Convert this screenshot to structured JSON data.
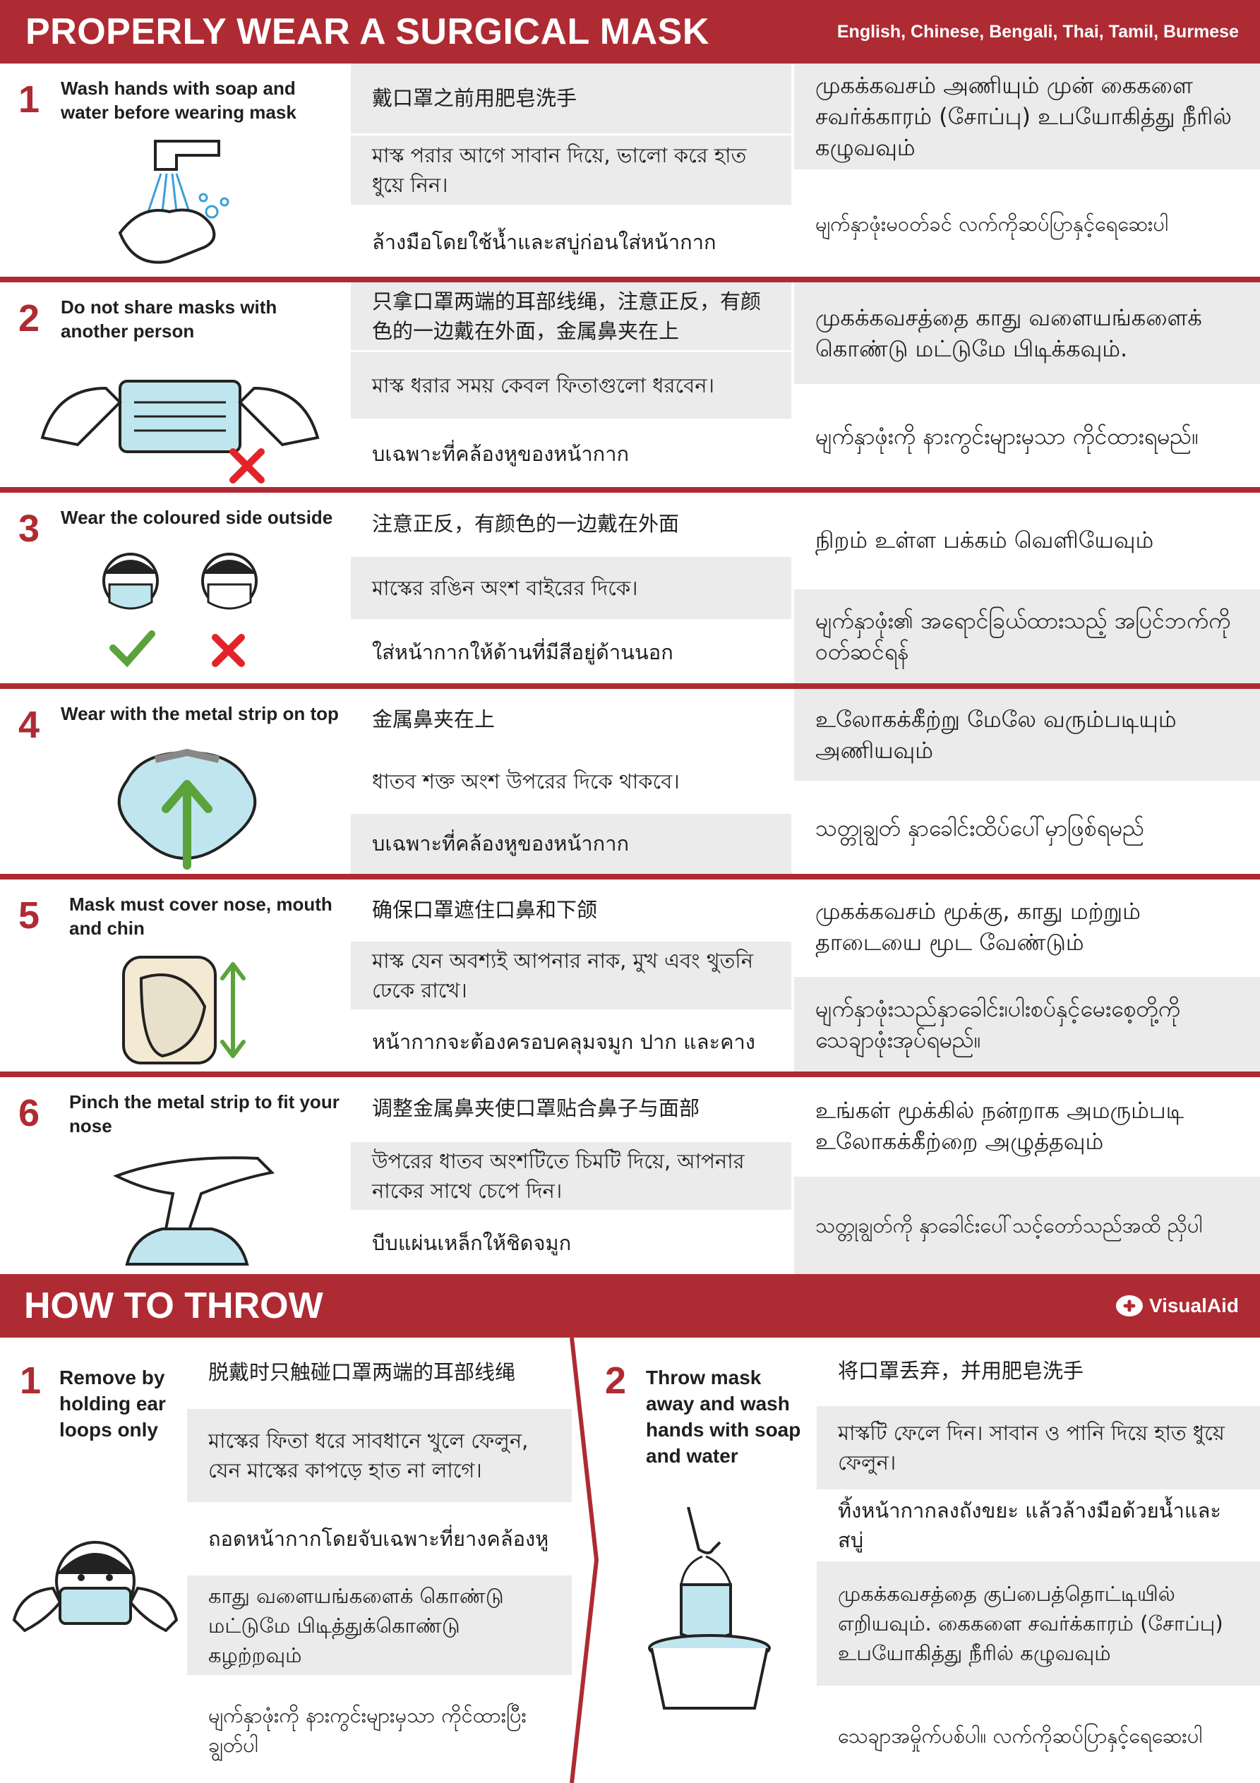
{
  "header": {
    "title": "PROPERLY WEAR A SURGICAL MASK",
    "languages": "English, Chinese, Bengali, Thai, Tamil, Burmese"
  },
  "steps": [
    {
      "num": "1",
      "title": "Wash hands with soap and water before wearing mask",
      "zh": "戴口罩之前用肥皂洗手",
      "bn": "মাস্ক পরার আগে সাবান দিয়ে, ভালো করে হাত ধুয়ে নিন।",
      "th": "ล้างมือโดยใช้น้ำและสบู่ก่อนใส่หน้ากาก",
      "ta": "முகக்கவசம் அணியும் முன் கைகளை சவர்க்காரம் (சோப்பு) உபயோகித்து நீரில் கழுவவும்",
      "my": "မျက်နှာဖုံးမဝတ်ခင် လက်ကိုဆပ်ပြာနှင့်ရေဆေးပါ"
    },
    {
      "num": "2",
      "title": "Do not share masks with another person",
      "zh": "只拿口罩两端的耳部线绳，注意正反，有颜色的一边戴在外面，金属鼻夹在上",
      "bn": "মাস্ক ধরার সময় কেবল ফিতাগুলো ধরবেন।",
      "th": "บเฉพาะที่คล้องหูของหน้ากาก",
      "ta": "முகக்கவசத்தை காது வளையங்களைக் கொண்டு மட்டுமே பிடிக்கவும்.",
      "my": "မျက်နှာဖုံးကို နားကွင်းများမှသာ ကိုင်ထားရမည်။"
    },
    {
      "num": "3",
      "title": "Wear the coloured side outside",
      "zh": "注意正反，有颜色的一边戴在外面",
      "bn": "মাস্কের রঙিন অংশ বাইরের দিকে।",
      "th": "ใส่หน้ากากให้ด้านที่มีสีอยู่ด้านนอก",
      "ta": "நிறம் உள்ள பக்கம் வெளியேவும்",
      "my": "မျက်နှာဖုံး၏ အရောင်ခြယ်ထားသည့် အပြင်ဘက်ကိုဝတ်ဆင်ရန်"
    },
    {
      "num": "4",
      "title": "Wear with the metal strip on top",
      "zh": "金属鼻夹在上",
      "bn": "ধাতব শক্ত অংশ উপরের দিকে থাকবে।",
      "th": "บเฉพาะที่คล้องหูของหน้ากาก",
      "ta": "உலோகக்கீற்று மேலே வரும்படியும் அணியவும்",
      "my": "သတ္တုချွတ် နှာခေါင်းထိပ်ပေါ်မှာဖြစ်ရမည်"
    },
    {
      "num": "5",
      "title": "Mask must cover nose, mouth and chin",
      "zh": "确保口罩遮住口鼻和下颌",
      "bn": "মাস্ক যেন অবশ্যই আপনার নাক, মুখ এবং থুতনি ঢেকে রাখে।",
      "th": "หน้ากากจะต้องครอบคลุมจมูก ปาก และคาง",
      "ta": "முகக்கவசம் மூக்கு, காது மற்றும் தாடையை மூட வேண்டும்",
      "my": "မျက်နှာဖုံးသည်နှာခေါင်း၊ပါးစပ်နှင့်မေးစေ့တို့ကိုသေချာဖုံးအုပ်ရမည်။"
    },
    {
      "num": "6",
      "title": "Pinch the metal strip  to fit your nose",
      "zh": "调整金属鼻夹使口罩贴合鼻子与面部",
      "bn": "উপরের ধাতব অংশটিতে চিমটি দিয়ে, আপনার নাকের সাথে চেপে দিন।",
      "th": "บีบแผ่นเหล็กให้ชิดจมูก",
      "ta": "உங்கள் மூக்கில் நன்றாக அமரும்படி உலோகக்கீற்றை அழுத்தவும்",
      "my": "သတ္တုချွတ်ကို နှာခေါင်းပေါ်သင့်တော်သည်အထိ ညှိပါ"
    }
  ],
  "throw": {
    "title": "HOW TO THROW",
    "brand": "VisualAid",
    "step1": {
      "num": "1",
      "title": "Remove by holding ear loops only",
      "zh": "脱戴时只触碰口罩两端的耳部线绳",
      "bn": "মাস্কের ফিতা ধরে সাবধানে খুলে ফেলুন, যেন মাস্কের কাপড়ে হাত না লাগে।",
      "th": "ถอดหน้ากากโดยจับเฉพาะที่ยางคล้องหู",
      "ta": "காது வளையங்களைக் கொண்டு மட்டுமே பிடித்துக்கொண்டு கழற்றவும்",
      "my": "မျက်နှာဖုံးကို နားကွင်းများမှသာ ကိုင်ထားပြီးချွတ်ပါ"
    },
    "step2": {
      "num": "2",
      "title": "Throw mask away and wash hands with soap and water",
      "zh": "将口罩丢弃，并用肥皂洗手",
      "bn": "মাস্কটি ফেলে দিন। সাবান ও পানি দিয়ে হাত ধুয়ে ফেলুন।",
      "th": "ทิ้งหน้ากากลงถังขยะ แล้วล้างมือด้วยน้ำและสบู่",
      "ta": "முகக்கவசத்தை குப்பைத்தொட்டியில் எறியவும். கைகளை சவர்க்காரம் (சோப்பு) உபயோகித்து நீரில் கழுவவும்",
      "my": "သေချာအမှိုက်ပစ်ပါ။ လက်ကိုဆပ်ပြာနှင့်ရေဆေးပါ"
    }
  },
  "colors": {
    "accent": "#ae2b33",
    "cell_gray": "#ebebeb",
    "mask_blue": "#bfe6ee",
    "check_green": "#5aa33a",
    "cross_red": "#e2232a"
  }
}
